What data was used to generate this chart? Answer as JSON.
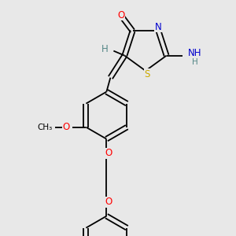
{
  "bg_color": "#e8e8e8",
  "bond_color": "#000000",
  "atom_colors": {
    "O": "#ff0000",
    "N": "#0000cd",
    "S": "#ccaa00",
    "H": "#558888",
    "C": "#000000"
  },
  "font_size": 8.5,
  "line_width": 1.3,
  "figsize": [
    3.0,
    3.0
  ],
  "dpi": 100
}
